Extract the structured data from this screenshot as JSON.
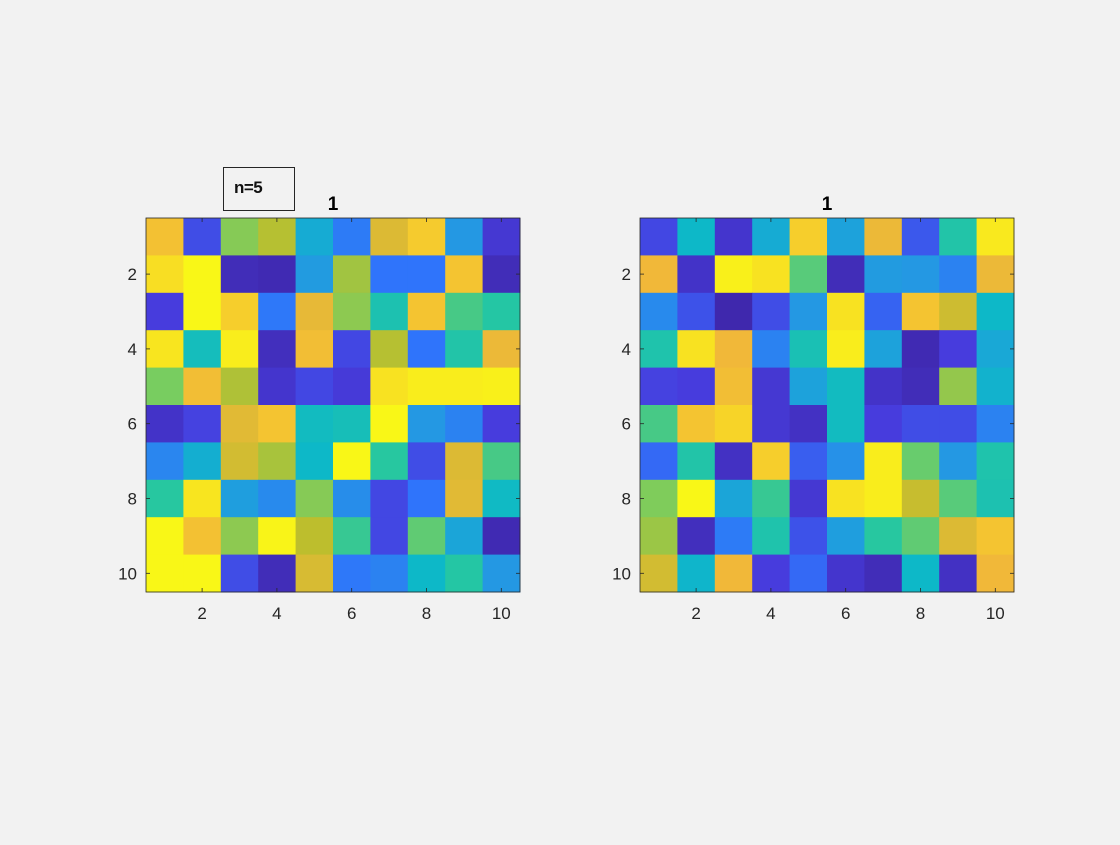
{
  "chart_data": [
    {
      "type": "heatmap",
      "title": "1",
      "rows": 10,
      "cols": 10,
      "xticks": [
        2,
        4,
        6,
        8,
        10
      ],
      "yticks": [
        2,
        4,
        6,
        8,
        10
      ],
      "xlim": [
        0.5,
        10.5
      ],
      "ylim": [
        0.5,
        10.5
      ],
      "colormap": "parula",
      "color_range": [
        0,
        1
      ],
      "values": [
        [
          0.83,
          0.13,
          0.62,
          0.69,
          0.36,
          0.22,
          0.76,
          0.86,
          0.3,
          0.08
        ],
        [
          0.92,
          0.99,
          0.03,
          0.02,
          0.31,
          0.66,
          0.2,
          0.2,
          0.84,
          0.03
        ],
        [
          0.1,
          0.99,
          0.87,
          0.21,
          0.78,
          0.63,
          0.46,
          0.84,
          0.54,
          0.49
        ],
        [
          0.94,
          0.43,
          0.96,
          0.04,
          0.82,
          0.12,
          0.69,
          0.2,
          0.48,
          0.79
        ],
        [
          0.6,
          0.82,
          0.68,
          0.07,
          0.12,
          0.09,
          0.93,
          0.96,
          0.96,
          0.97
        ],
        [
          0.06,
          0.11,
          0.77,
          0.84,
          0.42,
          0.44,
          0.99,
          0.3,
          0.24,
          0.1
        ],
        [
          0.25,
          0.37,
          0.74,
          0.67,
          0.4,
          0.99,
          0.5,
          0.13,
          0.76,
          0.54
        ],
        [
          0.5,
          0.94,
          0.32,
          0.26,
          0.62,
          0.27,
          0.12,
          0.2,
          0.77,
          0.41
        ],
        [
          0.99,
          0.83,
          0.63,
          0.98,
          0.7,
          0.52,
          0.12,
          0.57,
          0.34,
          0.02
        ],
        [
          0.99,
          0.99,
          0.13,
          0.03,
          0.75,
          0.21,
          0.24,
          0.4,
          0.49,
          0.3
        ]
      ]
    },
    {
      "type": "heatmap",
      "title": "1",
      "rows": 10,
      "cols": 10,
      "xticks": [
        2,
        4,
        6,
        8,
        10
      ],
      "yticks": [
        2,
        4,
        6,
        8,
        10
      ],
      "xlim": [
        0.5,
        10.5
      ],
      "ylim": [
        0.5,
        10.5
      ],
      "colormap": "parula",
      "color_range": [
        0,
        1
      ],
      "values": [
        [
          0.12,
          0.4,
          0.07,
          0.36,
          0.87,
          0.33,
          0.79,
          0.15,
          0.48,
          0.95
        ],
        [
          0.8,
          0.06,
          0.97,
          0.93,
          0.56,
          0.03,
          0.31,
          0.3,
          0.24,
          0.79
        ],
        [
          0.26,
          0.14,
          0.01,
          0.13,
          0.3,
          0.93,
          0.17,
          0.84,
          0.73,
          0.4
        ],
        [
          0.47,
          0.93,
          0.8,
          0.24,
          0.45,
          0.96,
          0.33,
          0.02,
          0.1,
          0.35
        ],
        [
          0.11,
          0.1,
          0.82,
          0.08,
          0.33,
          0.42,
          0.06,
          0.03,
          0.64,
          0.38
        ],
        [
          0.54,
          0.84,
          0.89,
          0.08,
          0.05,
          0.42,
          0.1,
          0.13,
          0.13,
          0.24
        ],
        [
          0.18,
          0.48,
          0.05,
          0.87,
          0.16,
          0.28,
          0.96,
          0.58,
          0.3,
          0.47
        ],
        [
          0.61,
          0.99,
          0.34,
          0.52,
          0.08,
          0.93,
          0.96,
          0.72,
          0.56,
          0.46
        ],
        [
          0.65,
          0.04,
          0.22,
          0.47,
          0.14,
          0.32,
          0.5,
          0.57,
          0.76,
          0.84
        ],
        [
          0.74,
          0.39,
          0.8,
          0.1,
          0.18,
          0.07,
          0.03,
          0.4,
          0.05,
          0.8
        ]
      ]
    }
  ],
  "annotation": {
    "text": "n=5"
  }
}
